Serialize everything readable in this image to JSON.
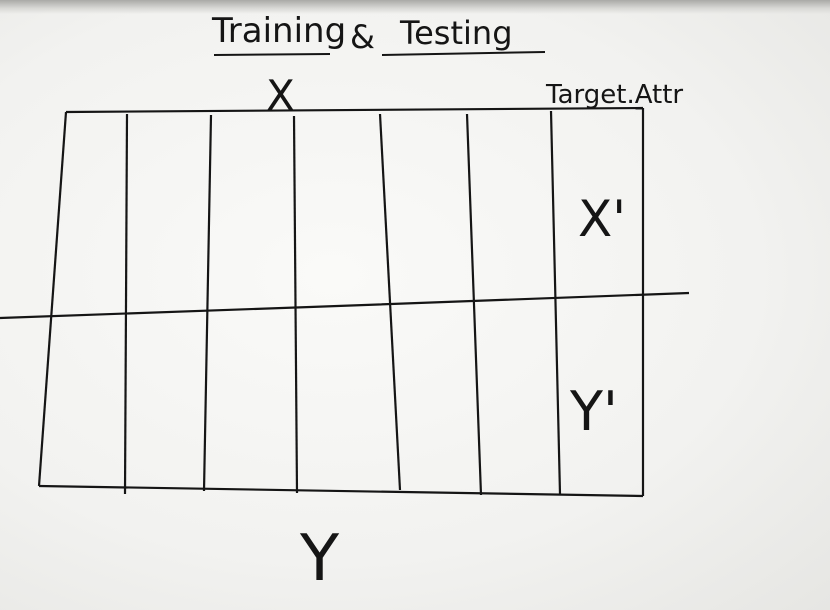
{
  "title": {
    "left": "Training",
    "amp": "&",
    "right": "Testing"
  },
  "labels": {
    "x_top": "X",
    "target": "Target.Attr",
    "x_prime": "X'",
    "y_prime": "Y'",
    "y_bottom": "Y"
  },
  "colors": {
    "ink": "#151515",
    "board": "#f3f3f1"
  }
}
